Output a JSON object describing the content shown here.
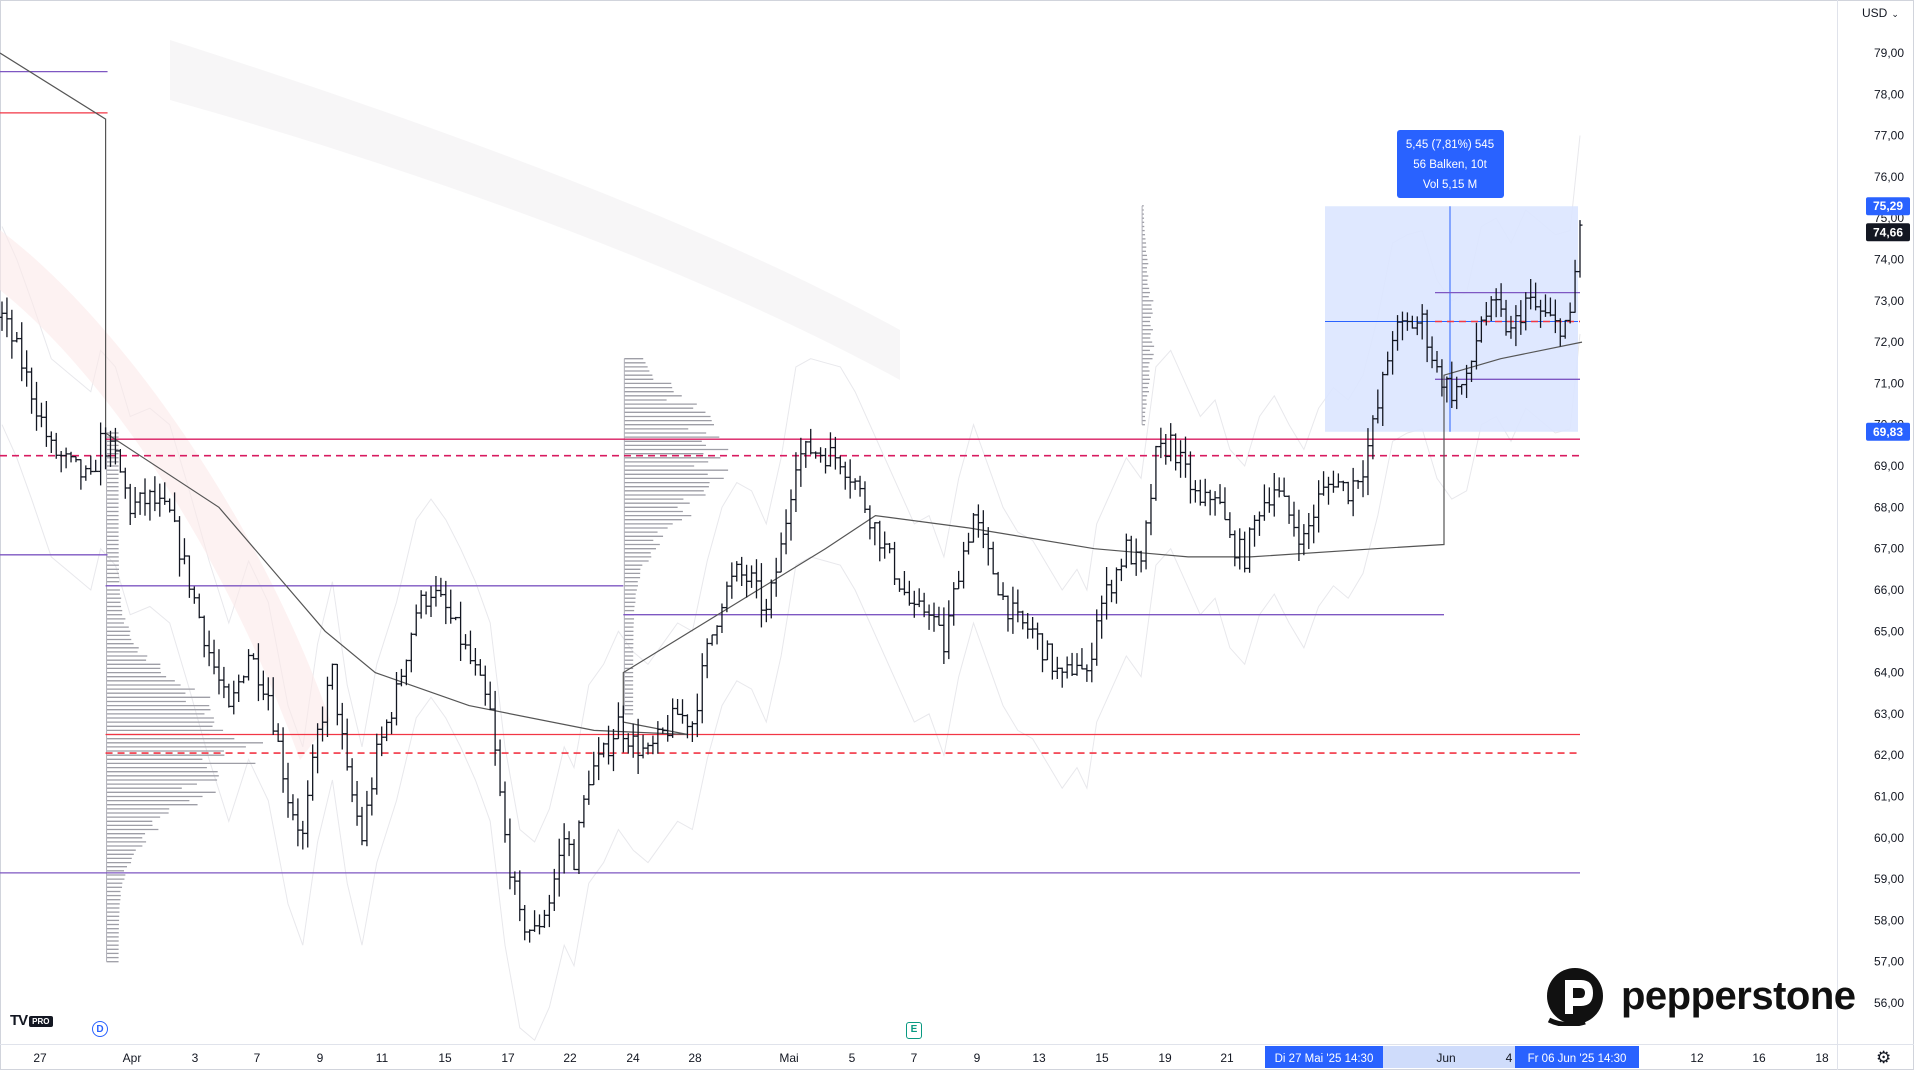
{
  "currency": "USD",
  "logo": {
    "text": "TV",
    "badge": "PRO"
  },
  "indicator_badges": {
    "dividend": "D",
    "earnings": "E"
  },
  "brand": {
    "name": "pepperstone"
  },
  "measure": {
    "line1": "5,45 (7,81%) 545",
    "line2": "56 Balken, 10t",
    "line3": "Vol 5,15 M",
    "high_label": "75,29",
    "low_label": "69,83"
  },
  "last_price": "74,66",
  "date_markers": {
    "start": "Di 27 Mai '25   14:30",
    "end": "Fr 06 Jun '25   14:30"
  },
  "colors": {
    "bar": "#131722",
    "support_line": "#6a1b9a",
    "resist_line": "#f23645",
    "highlight": "#dbe6ff",
    "accent": "#2962ff"
  },
  "chart_data": {
    "type": "ohlc",
    "y_axis": {
      "ylim": [
        55.6,
        80.2
      ],
      "ticks": [
        "79,00",
        "78,00",
        "77,00",
        "76,00",
        "75,00",
        "74,00",
        "73,00",
        "72,00",
        "71,00",
        "70,00",
        "69,00",
        "68,00",
        "67,00",
        "66,00",
        "65,00",
        "64,00",
        "63,00",
        "62,00",
        "61,00",
        "60,00",
        "59,00",
        "58,00",
        "57,00",
        "56,00"
      ]
    },
    "x_axis": {
      "ticks": [
        "27",
        "Apr",
        "3",
        "7",
        "9",
        "11",
        "15",
        "17",
        "22",
        "24",
        "28",
        "Mai",
        "5",
        "7",
        "9",
        "13",
        "15",
        "19",
        "21",
        "Jun",
        "4",
        "12",
        "16",
        "18"
      ]
    },
    "grid": false,
    "session_breaks": [
      {
        "date": "Apr",
        "x_index": 21
      },
      {
        "date": "Mai",
        "x_index": 126
      }
    ],
    "horizontal_levels": [
      {
        "value": 78.55,
        "color": "#7e57c2",
        "from_index": 0,
        "to_index": 21
      },
      {
        "value": 77.55,
        "color": "#f23645",
        "from_index": 0,
        "to_index": 21
      },
      {
        "value": 69.65,
        "color": "#d81b60",
        "from_index": 21,
        "to_index": 253
      },
      {
        "value": 69.25,
        "color": "#d81b60",
        "dashed": true,
        "from_index": 0,
        "to_index": 253
      },
      {
        "value": 66.85,
        "color": "#7e57c2",
        "from_index": 0,
        "to_index": 21
      },
      {
        "value": 66.1,
        "color": "#7e57c2",
        "from_index": 21,
        "to_index": 126
      },
      {
        "value": 65.4,
        "color": "#7e57c2",
        "from_index": 126,
        "to_index": 231
      },
      {
        "value": 62.5,
        "color": "#f23645",
        "from_index": 21,
        "to_index": 253
      },
      {
        "value": 62.05,
        "color": "#f23645",
        "dashed": true,
        "from_index": 21,
        "to_index": 47
      },
      {
        "value": 59.15,
        "color": "#7e57c2",
        "from_index": 0,
        "to_index": 253
      },
      {
        "value": 73.2,
        "color": "#7e57c2",
        "from_index": 231,
        "to_index": 253
      },
      {
        "value": 71.1,
        "color": "#7e57c2",
        "from_index": 231,
        "to_index": 253
      },
      {
        "value": 72.5,
        "color": "#f23645",
        "dashed": true,
        "from_index": 231,
        "to_index": 253
      }
    ],
    "anchored_vwap": [
      {
        "x": 0,
        "y": 79.0
      },
      {
        "x": 21,
        "y": 77.4
      },
      {
        "x": 21,
        "y": 69.8
      },
      {
        "x": 35,
        "y": 68.0
      },
      {
        "x": 52,
        "y": 65.0
      },
      {
        "x": 60,
        "y": 64.0
      },
      {
        "x": 75,
        "y": 63.2
      },
      {
        "x": 95,
        "y": 62.6
      },
      {
        "x": 110,
        "y": 62.5
      },
      {
        "x": 126,
        "y": 62.8
      },
      {
        "x": 126,
        "y": 64.0
      },
      {
        "x": 132,
        "y": 67.0
      },
      {
        "x": 140,
        "y": 67.8
      },
      {
        "x": 155,
        "y": 67.5
      },
      {
        "x": 175,
        "y": 67.0
      },
      {
        "x": 190,
        "y": 66.8
      },
      {
        "x": 200,
        "y": 66.8
      },
      {
        "x": 220,
        "y": 67.0
      },
      {
        "x": 231,
        "y": 67.1
      },
      {
        "x": 231,
        "y": 71.2
      },
      {
        "x": 240,
        "y": 71.6
      },
      {
        "x": 253,
        "y": 72.0
      }
    ],
    "volume_profiles": [
      {
        "anchor_index": 21,
        "price_low": 57.0,
        "price_high": 69.8,
        "peak_price": 62.2
      },
      {
        "anchor_index": 126,
        "price_low": 63.0,
        "price_high": 71.6,
        "peak_price": 69.2
      },
      {
        "anchor_index": 231,
        "price_low": 70.0,
        "price_high": 75.3,
        "peak_price": 72.3
      }
    ],
    "measure_range": {
      "from_index": 212,
      "to_index": 253,
      "low": 69.83,
      "high": 75.29
    },
    "last": 74.66
  }
}
